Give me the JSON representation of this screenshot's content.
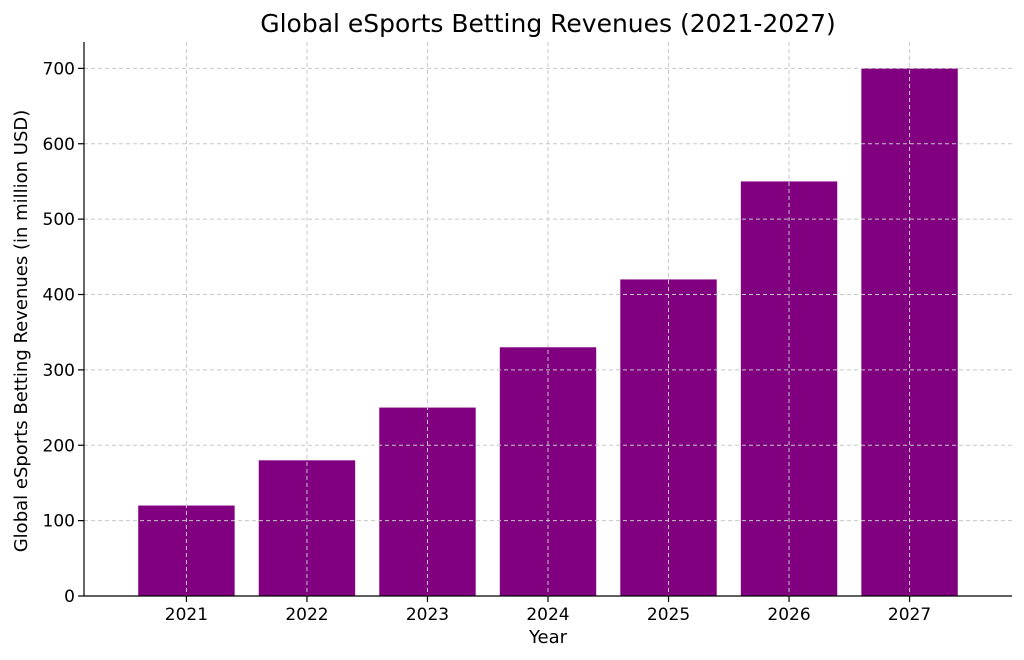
{
  "colors": {
    "bar": "#800080",
    "background": "#ffffff",
    "grid": "#c8c8c8"
  },
  "chart_data": {
    "type": "bar",
    "title": "Global eSports Betting Revenues (2021-2027)",
    "xlabel": "Year",
    "ylabel": "Global eSports Betting Revenues (in million USD)",
    "categories": [
      "2021",
      "2022",
      "2023",
      "2024",
      "2025",
      "2026",
      "2027"
    ],
    "values": [
      120,
      180,
      250,
      330,
      420,
      550,
      700
    ],
    "ylim": [
      0,
      735
    ],
    "yticks": [
      0,
      100,
      200,
      300,
      400,
      500,
      600,
      700
    ],
    "grid": true,
    "legend": "none"
  }
}
